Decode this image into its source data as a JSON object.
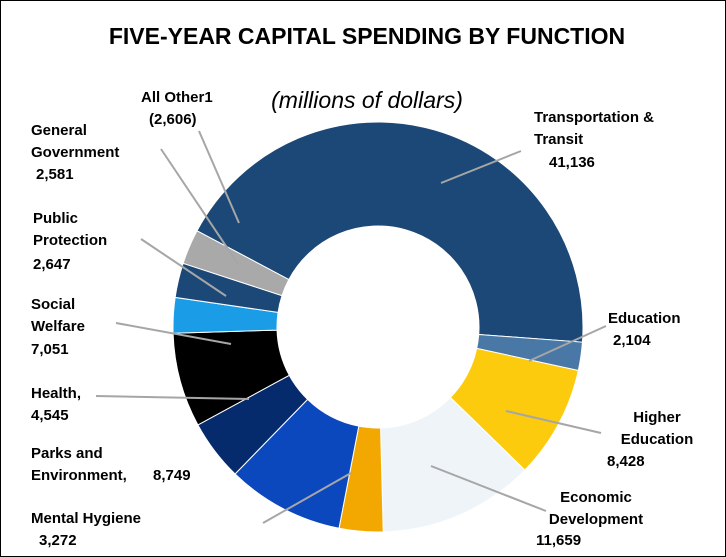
{
  "chart_data": {
    "type": "donut",
    "title": "FIVE-YEAR CAPITAL SPENDING BY FUNCTION",
    "subtitle": "(millions of dollars)",
    "categories": [
      "Transportation & Transit",
      "Education",
      "Higher Education",
      "Economic Development",
      "Mental Hygiene",
      "Parks and Environment,",
      "Health,",
      "Social Welfare",
      "Public Protection",
      "General Government",
      "All Other1"
    ],
    "values": [
      41136,
      2104,
      8428,
      11659,
      3272,
      8749,
      4545,
      7051,
      2647,
      2581,
      2606
    ],
    "value_labels": [
      "41,136",
      "2,104",
      "8,428",
      "11,659",
      "3,272",
      "8,749",
      "4,545",
      "7,051",
      "2,647",
      "2,581",
      "(2,606)"
    ],
    "colors": [
      "#1b4876",
      "#4a78a6",
      "#fccb0d",
      "#eef4f8",
      "#f2a800",
      "#0b47bd",
      "#062b6d",
      "#000000",
      "#1a9de6",
      "#1b4876",
      "#a9a9a9"
    ]
  }
}
